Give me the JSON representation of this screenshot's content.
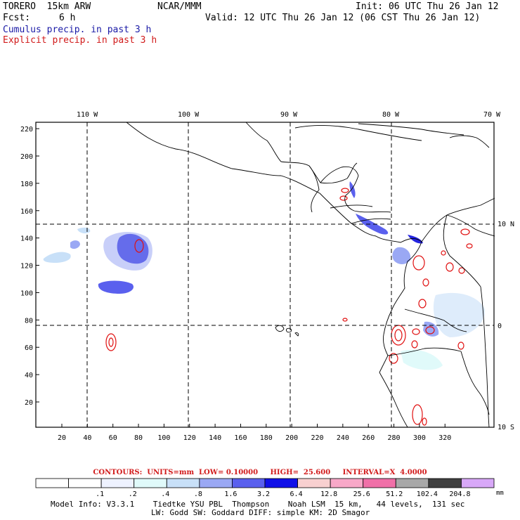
{
  "header": {
    "model_title": "TORERO  15km ARW",
    "org": "NCAR/MMM",
    "init": "Init: 06 UTC Thu 26 Jan 12",
    "fcst_label": "Fcst:",
    "fcst_hours": "6 h",
    "valid": "Valid: 12 UTC Thu 26 Jan 12 (06 CST Thu 26 Jan 12)",
    "field1": "Cumulus precip. in past 3 h",
    "field2": "Explicit precip. in past 3 h",
    "field1_color": "#1a1aa6",
    "field2_color": "#d11a1a"
  },
  "map": {
    "lon_labels": [
      "110 W",
      "100 W",
      "90 W",
      "80 W",
      "70 W"
    ],
    "lat_labels": [
      "10 N",
      "0",
      "10 S"
    ],
    "y_ticks": [
      "20",
      "40",
      "60",
      "80",
      "100",
      "120",
      "140",
      "160",
      "180",
      "200",
      "220"
    ],
    "x_ticks": [
      "20",
      "40",
      "60",
      "80",
      "100",
      "120",
      "140",
      "160",
      "180",
      "200",
      "220",
      "240",
      "260",
      "280",
      "300",
      "320"
    ],
    "contour_color": "#e01010",
    "precip_color_dark": "#2424e0",
    "precip_color_light": "#b8c4f4"
  },
  "contour_info": {
    "text": "CONTOURS:  UNITS=mm  LOW= 0.10000     HIGH=  25.600     INTERVAL=X  4.0000"
  },
  "legend": {
    "units": "mm",
    "colors": [
      "#ffffff",
      "#ffffff",
      "#eef2ff",
      "#e0fafa",
      "#c8e0f8",
      "#9aa8f4",
      "#5a60ee",
      "#1010e8",
      "#f8d0d0",
      "#f8a8c8",
      "#f070a8",
      "#a8a8a8",
      "#404040",
      "#d8a8f8"
    ],
    "labels": [
      ".1",
      ".2",
      ".4",
      ".8",
      "1.6",
      "3.2",
      "6.4",
      "12.8",
      "25.6",
      "51.2",
      "102.4",
      "204.8"
    ]
  },
  "model_info": {
    "line1": "Model Info: V3.3.1    Tiedtke YSU PBL  Thompson    Noah LSM  15 km,   44 levels,  131 sec",
    "line2": "LW: Godd SW: Goddard DIFF: simple KM: 2D Smagor"
  }
}
